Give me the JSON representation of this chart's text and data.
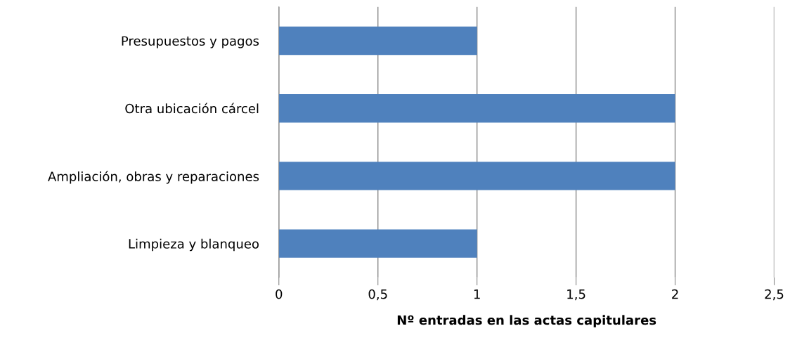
{
  "chart_data": {
    "type": "bar",
    "orientation": "horizontal",
    "xlabel": "Nº entradas en las actas capitulares",
    "categories": [
      "Presupuestos y pagos",
      "Otra ubicación cárcel",
      "Ampliación, obras y reparaciones",
      "Limpieza y blanqueo"
    ],
    "values": [
      1,
      2,
      2,
      1
    ],
    "color": "#4f81bd",
    "xlim": [
      0,
      2.5
    ],
    "xticks": [
      0,
      {
        "value": 0.5,
        "label": "0,5"
      },
      1,
      {
        "value": 1.5,
        "label": "1,5"
      },
      2,
      {
        "value": 2.5,
        "label": "2,5"
      }
    ],
    "grid": "x",
    "legend": false
  }
}
